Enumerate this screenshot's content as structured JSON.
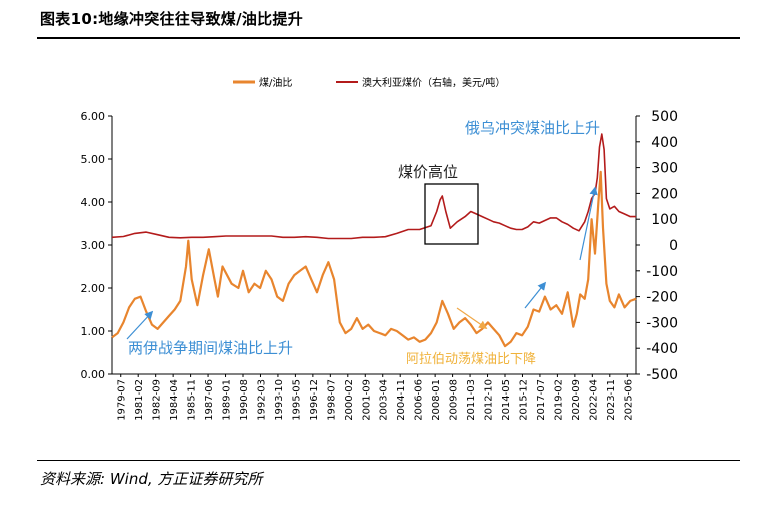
{
  "page": {
    "title": "图表10:地缘冲突往往导致煤/油比提升",
    "source": "资料来源: Wind, 方正证券研究所"
  },
  "chart_data": {
    "type": "line",
    "legend": [
      {
        "name": "煤/油比",
        "color": "#E8852E",
        "axis": "left"
      },
      {
        "name": "澳大利亚煤价（右轴，美元/吨）",
        "color": "#B31B1B",
        "axis": "right"
      }
    ],
    "x_tick_labels": [
      "1979-07",
      "1981-02",
      "1982-09",
      "1984-04",
      "1985-11",
      "1987-06",
      "1989-01",
      "1990-08",
      "1992-03",
      "1993-10",
      "1995-05",
      "1996-12",
      "1998-07",
      "2000-02",
      "2001-09",
      "2003-04",
      "2004-11",
      "2006-06",
      "2008-01",
      "2009-08",
      "2011-03",
      "2012-10",
      "2014-05",
      "2015-12",
      "2017-07",
      "2019-02",
      "2020-09",
      "2022-04",
      "2023-11",
      "2025-06"
    ],
    "xlim": [
      1979.5,
      2025.5
    ],
    "ylim_left": [
      0,
      6
    ],
    "ylim_right": [
      -500,
      500
    ],
    "left_ticks": [
      "0.00",
      "1.00",
      "2.00",
      "3.00",
      "4.00",
      "5.00",
      "6.00"
    ],
    "right_ticks": [
      "-500",
      "-400",
      "-300",
      "-200",
      "-100",
      "0",
      "100",
      "200",
      "300",
      "400",
      "500"
    ],
    "series": [
      {
        "name": "煤/油比",
        "axis": "left",
        "color": "#E8852E",
        "x": [
          1979.5,
          1980.0,
          1980.5,
          1981.0,
          1981.5,
          1982.0,
          1982.5,
          1983.0,
          1983.5,
          1984.0,
          1984.5,
          1985.0,
          1985.5,
          1986.0,
          1986.2,
          1986.5,
          1987.0,
          1987.5,
          1988.0,
          1988.5,
          1988.8,
          1989.2,
          1990.0,
          1990.6,
          1991.0,
          1991.5,
          1992.0,
          1992.5,
          1993.0,
          1993.5,
          1994.0,
          1994.5,
          1995.0,
          1995.5,
          1996.0,
          1996.5,
          1997.0,
          1997.5,
          1998.0,
          1998.5,
          1999.0,
          1999.5,
          2000.0,
          2000.5,
          2001.0,
          2001.5,
          2002.0,
          2002.5,
          2003.0,
          2003.5,
          2004.0,
          2004.5,
          2005.0,
          2005.5,
          2006.0,
          2006.5,
          2007.0,
          2007.5,
          2008.0,
          2008.5,
          2009.0,
          2009.5,
          2010.0,
          2010.5,
          2011.0,
          2011.5,
          2012.0,
          2012.5,
          2013.0,
          2013.5,
          2014.0,
          2014.5,
          2015.0,
          2015.5,
          2016.0,
          2016.5,
          2017.0,
          2017.5,
          2018.0,
          2018.5,
          2019.0,
          2019.5,
          2020.0,
          2020.3,
          2020.6,
          2021.0,
          2021.3,
          2021.6,
          2021.9,
          2022.2,
          2022.4,
          2022.6,
          2022.9,
          2023.2,
          2023.6,
          2024.0,
          2024.5,
          2025.0,
          2025.5
        ],
        "values": [
          0.85,
          0.95,
          1.2,
          1.55,
          1.75,
          1.8,
          1.45,
          1.15,
          1.05,
          1.2,
          1.35,
          1.5,
          1.7,
          2.5,
          3.1,
          2.2,
          1.6,
          2.3,
          2.9,
          2.2,
          1.8,
          2.5,
          2.1,
          2.0,
          2.4,
          1.9,
          2.1,
          2.0,
          2.4,
          2.2,
          1.8,
          1.7,
          2.1,
          2.3,
          2.4,
          2.5,
          2.2,
          1.9,
          2.3,
          2.6,
          2.2,
          1.2,
          0.95,
          1.05,
          1.3,
          1.05,
          1.15,
          1.0,
          0.95,
          0.9,
          1.05,
          1.0,
          0.9,
          0.8,
          0.85,
          0.75,
          0.8,
          0.95,
          1.2,
          1.7,
          1.4,
          1.05,
          1.2,
          1.3,
          1.15,
          0.95,
          1.05,
          1.2,
          1.05,
          0.9,
          0.65,
          0.75,
          0.95,
          0.9,
          1.1,
          1.5,
          1.45,
          1.8,
          1.5,
          1.6,
          1.4,
          1.9,
          1.1,
          1.4,
          1.85,
          1.75,
          2.2,
          3.6,
          2.8,
          4.0,
          4.7,
          3.4,
          2.1,
          1.7,
          1.55,
          1.85,
          1.55,
          1.7,
          1.75
        ]
      },
      {
        "name": "澳大利亚煤价（右轴，美元/吨）",
        "axis": "right",
        "color": "#B31B1B",
        "x": [
          1979.5,
          1980.5,
          1981.5,
          1982.5,
          1983.5,
          1984.5,
          1985.5,
          1986.5,
          1987.5,
          1988.5,
          1989.5,
          1990.5,
          1991.5,
          1992.5,
          1993.5,
          1994.5,
          1995.5,
          1996.5,
          1997.5,
          1998.5,
          1999.5,
          2000.5,
          2001.5,
          2002.5,
          2003.5,
          2004.5,
          2005.5,
          2006.5,
          2007.5,
          2008.0,
          2008.3,
          2008.5,
          2008.8,
          2009.2,
          2009.8,
          2010.5,
          2011.0,
          2011.5,
          2012.0,
          2012.5,
          2013.0,
          2013.5,
          2014.0,
          2014.5,
          2015.0,
          2015.5,
          2016.0,
          2016.5,
          2017.0,
          2017.5,
          2018.0,
          2018.5,
          2019.0,
          2019.5,
          2020.0,
          2020.5,
          2021.0,
          2021.3,
          2021.6,
          2021.9,
          2022.1,
          2022.3,
          2022.5,
          2022.7,
          2022.9,
          2023.2,
          2023.6,
          2024.0,
          2024.5,
          2025.0,
          2025.5
        ],
        "values": [
          30,
          33,
          45,
          50,
          40,
          30,
          28,
          30,
          30,
          32,
          35,
          35,
          35,
          35,
          35,
          30,
          30,
          32,
          30,
          25,
          25,
          25,
          30,
          30,
          32,
          45,
          60,
          60,
          75,
          130,
          175,
          190,
          130,
          65,
          90,
          110,
          130,
          120,
          110,
          100,
          90,
          85,
          75,
          65,
          60,
          60,
          70,
          90,
          85,
          95,
          105,
          105,
          90,
          80,
          65,
          55,
          90,
          130,
          180,
          200,
          260,
          380,
          430,
          370,
          180,
          140,
          150,
          130,
          120,
          110,
          110
        ]
      }
    ],
    "annotations": [
      {
        "text": "俄乌冲突煤油比上升",
        "color": "#3D8FD4"
      },
      {
        "text": "煤价高位",
        "color": "#222222"
      },
      {
        "text": "两伊战争期间煤油比上升",
        "color": "#3D8FD4"
      },
      {
        "text": "阿拉伯动荡煤油比下降",
        "color": "#F0B23A"
      }
    ]
  }
}
